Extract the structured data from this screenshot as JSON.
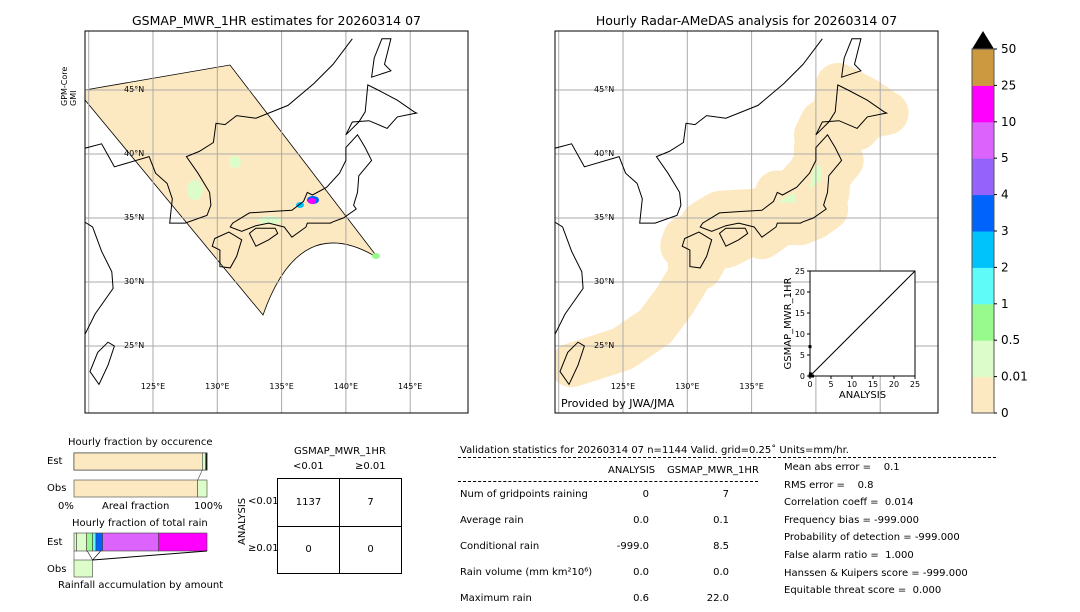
{
  "chart_data": [
    {
      "type": "heatmap",
      "title": "GSMAP_MWR_1HR estimates for 20260314 07",
      "side_label": "GPM-Core\nGMI",
      "side_label_lines": [
        "GPM-Core",
        "GMI"
      ],
      "lon_ticks": [
        "125°E",
        "130°E",
        "135°E",
        "140°E",
        "145°E"
      ],
      "lat_ticks": [
        "45°N",
        "40°N",
        "35°N",
        "30°N",
        "25°N"
      ],
      "grid": true
    },
    {
      "type": "heatmap",
      "title": "Hourly Radar-AMeDAS analysis for 20260314 07",
      "lon_ticks": [
        "125°E",
        "130°E",
        "135°E"
      ],
      "lat_ticks": [
        "45°N",
        "40°N",
        "35°N",
        "30°N",
        "25°N"
      ],
      "credit": "Provided by JWA/JMA",
      "grid": true
    },
    {
      "type": "scatter",
      "xlabel": "ANALYSIS",
      "ylabel": "GSMAP_MWR_1HR",
      "xlim": [
        0,
        25
      ],
      "ylim": [
        0,
        25
      ],
      "x_ticks": [
        "0",
        "5",
        "10",
        "15",
        "20",
        "25"
      ],
      "y_ticks": [
        "0",
        "5",
        "10",
        "15",
        "20",
        "25"
      ],
      "points": [
        [
          0,
          0
        ],
        [
          0.6,
          0
        ],
        [
          0,
          7
        ],
        [
          0.1,
          0.5
        ]
      ]
    },
    {
      "type": "bar",
      "title": "Colorbar",
      "levels": [
        "0",
        "0.01",
        "0.5",
        "1",
        "2",
        "3",
        "4",
        "5",
        "10",
        "25",
        "50"
      ],
      "colors": [
        "#fde9c1",
        "#dcfcc9",
        "#98f98c",
        "#5efbf9",
        "#00c3fb",
        "#0063fb",
        "#9563fb",
        "#dc63fb",
        "#ff00ff",
        "#cd9940"
      ],
      "extend": "max",
      "extend_color": "#000000"
    },
    {
      "type": "bar",
      "title": "Hourly fraction by occurence",
      "categories": [
        "Est",
        "Obs"
      ],
      "xlabel": "Areal fraction",
      "x_ticks": [
        "0%",
        "100%"
      ],
      "series": [
        {
          "category": "Est",
          "fractions": [
            0.965,
            0.025,
            0.01
          ],
          "colors": [
            "#fde9c1",
            "#dcfcc9",
            "#000000"
          ]
        },
        {
          "category": "Obs",
          "fractions": [
            0.93,
            0.07
          ],
          "colors": [
            "#fde9c1",
            "#dcfcc9"
          ]
        }
      ]
    },
    {
      "type": "bar",
      "title": "Hourly fraction of total rain",
      "xlabel": "Rainfall accumulation by amount",
      "categories": [
        "Est",
        "Obs"
      ],
      "series": [
        {
          "category": "Est",
          "fractions": [
            0.02,
            0.075,
            0.045,
            0.025,
            0.05,
            0.42,
            0.365
          ],
          "colors": [
            "#dcfcc9",
            "#dcfcc9",
            "#98f98c",
            "#5efbf9",
            "#0063fb",
            "#dc63fb",
            "#ff00ff"
          ]
        },
        {
          "category": "Obs",
          "fractions": [
            0.14
          ],
          "colors": [
            "#dcfcc9"
          ]
        }
      ]
    },
    {
      "type": "table",
      "title": "GSMAP_MWR_1HR",
      "col_headers": [
        "<0.01",
        "≥0.01"
      ],
      "row_label": "ANALYSIS",
      "row_headers": [
        "<0.01",
        "≥0.01"
      ],
      "cells": [
        [
          "1137",
          "7"
        ],
        [
          "0",
          "0"
        ]
      ]
    }
  ],
  "stats": {
    "header": "Validation statistics for 20260314 07  n=1144 Valid. grid=0.25˚ Units=mm/hr.",
    "col_headers": [
      "ANALYSIS",
      "GSMAP_MWR_1HR"
    ],
    "rows": [
      {
        "label": "Num of gridpoints raining",
        "analysis": "0",
        "gsmap": "7"
      },
      {
        "label": "Average rain",
        "analysis": "0.0",
        "gsmap": "0.1"
      },
      {
        "label": "Conditional rain",
        "analysis": "-999.0",
        "gsmap": "8.5"
      },
      {
        "label": "Rain volume (mm km²10⁶)",
        "analysis": "0.0",
        "gsmap": "0.0"
      },
      {
        "label": "Maximum rain",
        "analysis": "0.6",
        "gsmap": "22.0"
      }
    ],
    "scores": [
      "Mean abs error =    0.1",
      "RMS error =    0.8",
      "Correlation coeff =  0.014",
      "Frequency bias = -999.000",
      "Probability of detection = -999.000",
      "False alarm ratio =  1.000",
      "Hanssen & Kuipers score = -999.000",
      "Equitable threat score =  0.000"
    ]
  }
}
